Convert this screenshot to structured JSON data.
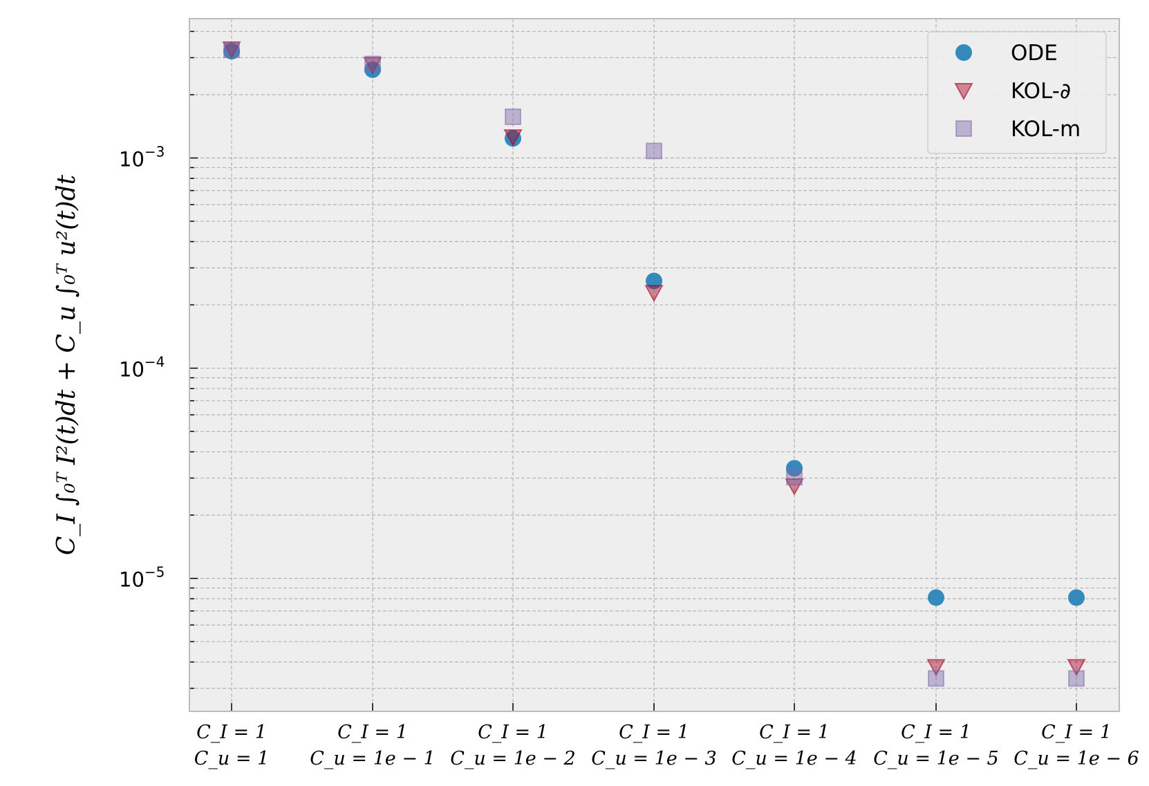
{
  "chart_data": {
    "type": "scatter",
    "title": "",
    "xlabel": "",
    "ylabel": "C_I ∫₀ᵀ I²(t)dt + C_u ∫₀ᵀ u²(t)dt",
    "yscale": "log",
    "ylim": [
      2.33e-06,
      0.0046
    ],
    "grid": true,
    "legend_position": "top-right",
    "y_ticks": [
      {
        "value": 0.001,
        "label": "10",
        "exp": "−3"
      },
      {
        "value": 0.0001,
        "label": "10",
        "exp": "−4"
      },
      {
        "value": 1e-05,
        "label": "10",
        "exp": "−5"
      }
    ],
    "categories": [
      {
        "line1": "C_I = 1",
        "line2": "C_u = 1"
      },
      {
        "line1": "C_I = 1",
        "line2": "C_u = 1e − 1"
      },
      {
        "line1": "C_I = 1",
        "line2": "C_u = 1e − 2"
      },
      {
        "line1": "C_I = 1",
        "line2": "C_u = 1e − 3"
      },
      {
        "line1": "C_I = 1",
        "line2": "C_u = 1e − 4"
      },
      {
        "line1": "C_I = 1",
        "line2": "C_u = 1e − 5"
      },
      {
        "line1": "C_I = 1",
        "line2": "C_u = 1e − 6"
      }
    ],
    "series": [
      {
        "name": "ODE",
        "marker": "circle",
        "color": "#348ABD",
        "values": [
          0.00322,
          0.00263,
          0.00124,
          0.00026,
          3.34e-05,
          8.1e-06,
          8.1e-06
        ]
      },
      {
        "name": "KOL-∂",
        "marker": "triangle-down",
        "color": "#A60628",
        "values": [
          0.0033,
          0.00278,
          0.00126,
          0.000229,
          2.75e-05,
          3.8e-06,
          3.8e-06
        ]
      },
      {
        "name": "KOL-m",
        "marker": "square",
        "color": "#7A68A6",
        "values": [
          0.00327,
          0.0028,
          0.00157,
          0.00108,
          3.03e-05,
          3.34e-06,
          3.34e-06
        ]
      }
    ]
  }
}
